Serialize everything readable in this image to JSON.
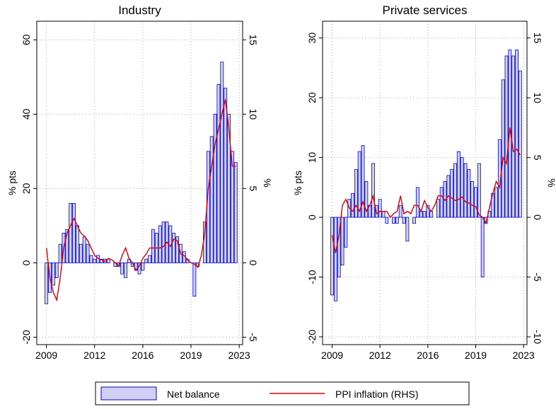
{
  "chart_data": [
    {
      "type": "bar_line",
      "title": "Industry",
      "ylabel": "% pts",
      "y2label": "%",
      "x": [
        2009,
        2009.25,
        2009.5,
        2009.75,
        2010,
        2010.25,
        2010.5,
        2010.75,
        2011,
        2011.25,
        2011.5,
        2011.75,
        2012,
        2012.25,
        2012.5,
        2012.75,
        2013,
        2013.25,
        2013.5,
        2013.75,
        2014,
        2014.25,
        2014.5,
        2014.75,
        2015,
        2015.25,
        2015.5,
        2015.75,
        2016,
        2016.25,
        2016.5,
        2016.75,
        2017,
        2017.25,
        2017.5,
        2017.75,
        2018,
        2018.25,
        2018.5,
        2018.75,
        2019,
        2019.25,
        2019.5,
        2019.75,
        2020,
        2020.25,
        2020.5,
        2020.75,
        2021,
        2021.25,
        2021.5,
        2021.75,
        2022,
        2022.25,
        2022.5,
        2022.75
      ],
      "xlim": [
        2008.3,
        2023.25
      ],
      "xticks": [
        {
          "value": 2009,
          "label": "2009"
        },
        {
          "value": 2012.5,
          "label": "2012"
        },
        {
          "value": 2016,
          "label": "2016"
        },
        {
          "value": 2019.5,
          "label": "2019"
        },
        {
          "value": 2023,
          "label": "2023"
        }
      ],
      "ylim": [
        -22,
        65
      ],
      "yticks": [
        -20,
        0,
        20,
        40,
        60
      ],
      "y2lim": [
        -5.5,
        16.25
      ],
      "y2ticks": [
        -5,
        0,
        5,
        10,
        15
      ],
      "grid": true,
      "series": [
        {
          "name": "Net balance",
          "type": "bar",
          "color": "#d0d0f5",
          "edge": "#0000cc",
          "values": [
            -11,
            -8,
            -6,
            -4,
            5,
            8,
            9,
            16,
            16,
            10,
            5,
            7,
            5,
            2,
            1,
            2,
            1,
            1,
            1,
            0,
            -1,
            -1,
            -3,
            -4,
            1,
            -1,
            -2,
            -3,
            -2,
            1,
            2,
            9,
            8,
            10,
            11,
            11,
            10,
            8,
            7,
            5,
            3,
            1,
            0,
            -9,
            -1,
            0,
            11,
            30,
            34,
            40,
            48,
            54,
            47,
            40,
            30,
            27
          ]
        },
        {
          "name": "PPI inflation (RHS)",
          "type": "line",
          "color": "#e00000",
          "axis": "y2",
          "values": [
            1,
            -1,
            -2,
            -2.5,
            -1,
            1,
            2,
            2.5,
            3,
            2.5,
            2,
            1.8,
            1.5,
            1,
            0.5,
            0.3,
            0.2,
            0.1,
            0.3,
            0.2,
            0,
            -0.2,
            0.5,
            1,
            0.3,
            0,
            -0.5,
            -0.2,
            0.3,
            0.6,
            1,
            1,
            1,
            1,
            1.1,
            1.4,
            1.1,
            1.6,
            1.5,
            0.6,
            0.5,
            0.2,
            0,
            -0.1,
            -0.3,
            0.5,
            2,
            5,
            6.5,
            8,
            9,
            10,
            11,
            9,
            6.5,
            6.5
          ]
        }
      ]
    },
    {
      "type": "bar_line",
      "title": "Private services",
      "ylabel": "% pts",
      "y2label": "%",
      "x": [
        2009,
        2009.25,
        2009.5,
        2009.75,
        2010,
        2010.25,
        2010.5,
        2010.75,
        2011,
        2011.25,
        2011.5,
        2011.75,
        2012,
        2012.25,
        2012.5,
        2012.75,
        2013,
        2013.25,
        2013.5,
        2013.75,
        2014,
        2014.25,
        2014.5,
        2014.75,
        2015,
        2015.25,
        2015.5,
        2015.75,
        2016,
        2016.25,
        2016.5,
        2016.75,
        2017,
        2017.25,
        2017.5,
        2017.75,
        2018,
        2018.25,
        2018.5,
        2018.75,
        2019,
        2019.25,
        2019.5,
        2019.75,
        2020,
        2020.25,
        2020.5,
        2020.75,
        2021,
        2021.25,
        2021.5,
        2021.75,
        2022,
        2022.25,
        2022.5,
        2022.75
      ],
      "xlim": [
        2008.3,
        2023.25
      ],
      "xticks": [
        {
          "value": 2009,
          "label": "2009"
        },
        {
          "value": 2012.5,
          "label": "2012"
        },
        {
          "value": 2016,
          "label": "2016"
        },
        {
          "value": 2019.5,
          "label": "2019"
        },
        {
          "value": 2023,
          "label": "2023"
        }
      ],
      "ylim": [
        -21.3,
        32.8
      ],
      "yticks": [
        -20,
        -10,
        0,
        10,
        20,
        30
      ],
      "y2lim": [
        -10.65,
        16.4
      ],
      "y2ticks": [
        -10,
        -5,
        0,
        5,
        10,
        15
      ],
      "grid": true,
      "series": [
        {
          "name": "Net balance",
          "type": "bar",
          "color": "#d0d0f5",
          "edge": "#0000cc",
          "values": [
            -13,
            -14,
            -10,
            -8,
            -5,
            3,
            4,
            8,
            11,
            12,
            6,
            2,
            9,
            2,
            3,
            1,
            -1,
            0,
            -1,
            -1,
            2,
            -1,
            -4,
            0,
            -1,
            5,
            1,
            1,
            2,
            1,
            0,
            3,
            5,
            6,
            7,
            8,
            9,
            11,
            10,
            9,
            8,
            6,
            5,
            9,
            -10,
            -1,
            1,
            4,
            5,
            13,
            23,
            27,
            28,
            27,
            28,
            24.5
          ]
        },
        {
          "name": "PPI inflation (RHS)",
          "type": "line",
          "color": "#e00000",
          "axis": "y2",
          "values": [
            -1.5,
            -3,
            -1.5,
            1,
            1.5,
            0.8,
            0.5,
            1,
            0.5,
            1.3,
            0.5,
            1,
            1.8,
            0.3,
            0.5,
            0.5,
            0.5,
            0,
            0.3,
            0.5,
            1.8,
            0.3,
            0.5,
            0.3,
            1,
            1,
            0.5,
            1.4,
            0.8,
            0.5,
            1,
            1.8,
            1.8,
            1.4,
            1.8,
            1.6,
            1.4,
            1.5,
            1.7,
            1.3,
            1.2,
            1,
            0.9,
            0.2,
            0,
            -0.5,
            0.8,
            2,
            3,
            2.5,
            5,
            4.5,
            7.5,
            5.5,
            5.7,
            5.2
          ]
        }
      ]
    }
  ]
}
